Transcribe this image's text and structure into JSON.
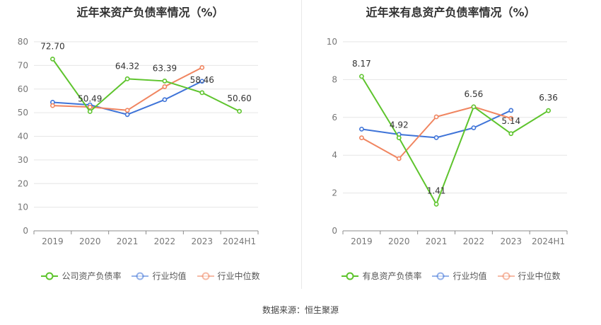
{
  "source_label": "数据来源：恒生聚源",
  "colors": {
    "grid": "#e6e6e6",
    "axis": "#8c8c8c",
    "tick_text": "#777777",
    "label_text": "#333333"
  },
  "chart_data": [
    {
      "type": "line",
      "title": "近年来资产负债率情况（%）",
      "categories": [
        "2019",
        "2020",
        "2021",
        "2022",
        "2023",
        "2024H1"
      ],
      "ylim": [
        0,
        80
      ],
      "yticks": [
        0,
        10,
        20,
        30,
        40,
        50,
        60,
        70,
        80
      ],
      "grid": true,
      "legend_position": "bottom",
      "series": [
        {
          "name": "公司资产负债率",
          "color": "#5ec42d",
          "values": [
            72.7,
            50.49,
            64.32,
            63.39,
            58.46,
            50.6
          ],
          "labels": [
            "72.70",
            "50.49",
            "64.32",
            "63.39",
            "58.46",
            "50.60"
          ]
        },
        {
          "name": "行业均值",
          "color": "#3f74d8",
          "values": [
            54.4,
            53.3,
            49.2,
            55.5,
            63.3,
            null
          ]
        },
        {
          "name": "行业中位数",
          "color": "#f08560",
          "values": [
            53.0,
            52.4,
            51.0,
            61.0,
            69.1,
            null
          ]
        }
      ]
    },
    {
      "type": "line",
      "title": "近年来有息资产负债率情况（%）",
      "categories": [
        "2019",
        "2020",
        "2021",
        "2022",
        "2023",
        "2024H1"
      ],
      "ylim": [
        0,
        10
      ],
      "yticks": [
        0,
        2,
        4,
        6,
        8,
        10
      ],
      "grid": true,
      "legend_position": "bottom",
      "series": [
        {
          "name": "有息资产负债率",
          "color": "#5ec42d",
          "values": [
            8.17,
            4.92,
            1.41,
            6.56,
            5.14,
            6.36
          ],
          "labels": [
            "8.17",
            "4.92",
            "1.41",
            "6.56",
            "5.14",
            "6.36"
          ]
        },
        {
          "name": "行业均值",
          "color": "#3f74d8",
          "values": [
            5.38,
            5.1,
            4.93,
            5.45,
            6.37,
            null
          ]
        },
        {
          "name": "行业中位数",
          "color": "#f08560",
          "values": [
            4.92,
            3.82,
            6.03,
            6.56,
            5.95,
            null
          ]
        }
      ]
    }
  ]
}
